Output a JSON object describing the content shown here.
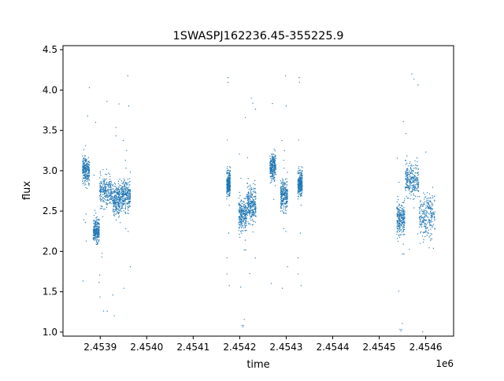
{
  "chart_data": {
    "type": "scatter",
    "title": "1SWASPJ162236.45-355225.9",
    "xlabel": "time",
    "ylabel": "flux",
    "x_offset_label": "1e6",
    "xlim": [
      2.45382,
      2.45466
    ],
    "ylim": [
      0.95,
      4.55
    ],
    "x_ticks": [
      2.4539,
      2.454,
      2.4541,
      2.4542,
      2.4543,
      2.4544,
      2.4545,
      2.4546
    ],
    "x_tick_labels": [
      "2.4539",
      "2.4540",
      "2.4541",
      "2.4542",
      "2.4543",
      "2.4544",
      "2.4545",
      "2.4546"
    ],
    "y_ticks": [
      1.0,
      1.5,
      2.0,
      2.5,
      3.0,
      3.5,
      4.0,
      4.5
    ],
    "y_tick_labels": [
      "1.0",
      "1.5",
      "2.0",
      "2.5",
      "3.0",
      "3.5",
      "4.0",
      "4.5"
    ],
    "grid": false,
    "marker_color": "#1f77b4",
    "series": [
      {
        "segments": [
          {
            "x_start": 2.453862,
            "x_end": 2.453877,
            "y_center": 3.0,
            "spread": 0.2
          },
          {
            "x_start": 2.453885,
            "x_end": 2.453898,
            "y_center": 2.25,
            "spread": 0.18
          },
          {
            "x_start": 2.453899,
            "x_end": 2.453925,
            "y_center": 2.75,
            "spread": 0.25
          },
          {
            "x_start": 2.453926,
            "x_end": 2.453945,
            "y_center": 2.65,
            "spread": 0.25
          },
          {
            "x_start": 2.453946,
            "x_end": 2.453965,
            "y_center": 2.7,
            "spread": 0.25
          },
          {
            "x_start": 2.454172,
            "x_end": 2.45418,
            "y_center": 2.85,
            "spread": 0.2
          },
          {
            "x_start": 2.454198,
            "x_end": 2.454215,
            "y_center": 2.45,
            "spread": 0.25
          },
          {
            "x_start": 2.454216,
            "x_end": 2.454235,
            "y_center": 2.6,
            "spread": 0.3
          },
          {
            "x_start": 2.454265,
            "x_end": 2.454278,
            "y_center": 3.05,
            "spread": 0.2
          },
          {
            "x_start": 2.454288,
            "x_end": 2.454303,
            "y_center": 2.7,
            "spread": 0.25
          },
          {
            "x_start": 2.454325,
            "x_end": 2.454335,
            "y_center": 2.85,
            "spread": 0.2
          },
          {
            "x_start": 2.454538,
            "x_end": 2.454555,
            "y_center": 2.4,
            "spread": 0.25
          },
          {
            "x_start": 2.454556,
            "x_end": 2.454585,
            "y_center": 2.9,
            "spread": 0.28
          },
          {
            "x_start": 2.454586,
            "x_end": 2.45462,
            "y_center": 2.45,
            "spread": 0.35
          }
        ]
      }
    ]
  }
}
